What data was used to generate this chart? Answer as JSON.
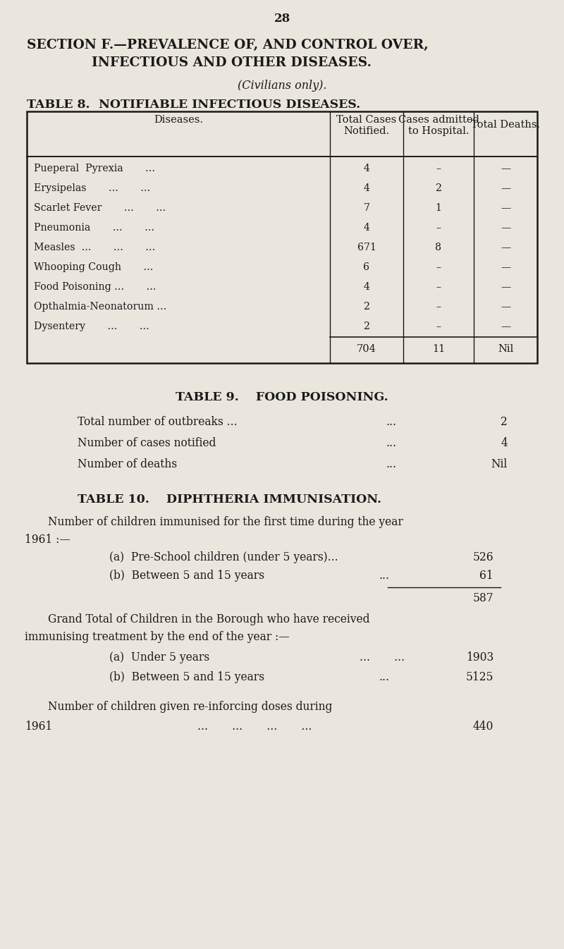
{
  "page_number": "28",
  "bg_color": "#eae6dd",
  "text_color": "#1a1a1a",
  "section_title_line1": "SECTION F.—PREVALENCE OF, AND CONTROL OVER,",
  "section_title_line2": "INFECTIOUS AND OTHER DISEASES.",
  "section_subtitle": "(Civilians only).",
  "table8_title_left": "TABLE 8.",
  "table8_title_right": "NOTIFIABLE INFECTIOUS DISEASES.",
  "table8_col_headers": [
    "Diseases.",
    "Total Cases\nNotified.",
    "Cases admitted\nto Hospital.",
    "Total Deaths."
  ],
  "table8_diseases": [
    "Pueperal  Pyrexia       ...",
    "Erysipelas       ...       ...",
    "Scarlet Fever       ...       ...",
    "Pneumonia       ...       ...",
    "Measles  ...       ...       ...",
    "Whooping Cough       ...",
    "Food Poisoning ...       ...",
    "Opthalmia-Neonatorum ...",
    "Dysentery       ...       ..."
  ],
  "table8_total_cases": [
    "4",
    "4",
    "7",
    "4",
    "671",
    "6",
    "4",
    "2",
    "2"
  ],
  "table8_cases_admitted": [
    "–",
    "2",
    "1",
    "–",
    "8",
    "–",
    "–",
    "–",
    "–"
  ],
  "table8_deaths": [
    "—",
    "—",
    "—",
    "—",
    "—",
    "—",
    "—",
    "—",
    "—"
  ],
  "table8_total_row": [
    "704",
    "11",
    "Nil"
  ],
  "table9_title": "TABLE 9.    FOOD POISONING.",
  "table9_label1": "Total number of outbreaks ...",
  "table9_val1": "2",
  "table9_label2": "Number of cases notified",
  "table9_val2": "4",
  "table9_label3": "Number of deaths",
  "table9_val3": "Nil",
  "table10_title": "TABLE 10.    DIPHTHERIA IMMUNISATION.",
  "table10_intro1": "Number of children immunised for the first time during the year",
  "table10_intro2": "1961 :—",
  "table10_a1_label": "(a)  Pre-School children (under 5 years)...",
  "table10_a1_val": "526",
  "table10_b1_label": "(b)  Between 5 and 15 years",
  "table10_b1_dots": "...",
  "table10_b1_val": "61",
  "table10_subtotal": "587",
  "table10_grand1": "Grand Total of Children in the Borough who have received",
  "table10_grand2": "immunising treatment by the end of the year :—",
  "table10_a2_label": "(a)  Under 5 years",
  "table10_a2_dots": "...       ...",
  "table10_a2_val": "1903",
  "table10_b2_label": "(b)  Between 5 and 15 years",
  "table10_b2_dots": "...",
  "table10_b2_val": "5125",
  "table10_reinforce": "Number of children given re-inforcing doses during",
  "table10_year": "1961",
  "table10_year_dots": "...       ...       ...       ...",
  "table10_year_val": "440"
}
